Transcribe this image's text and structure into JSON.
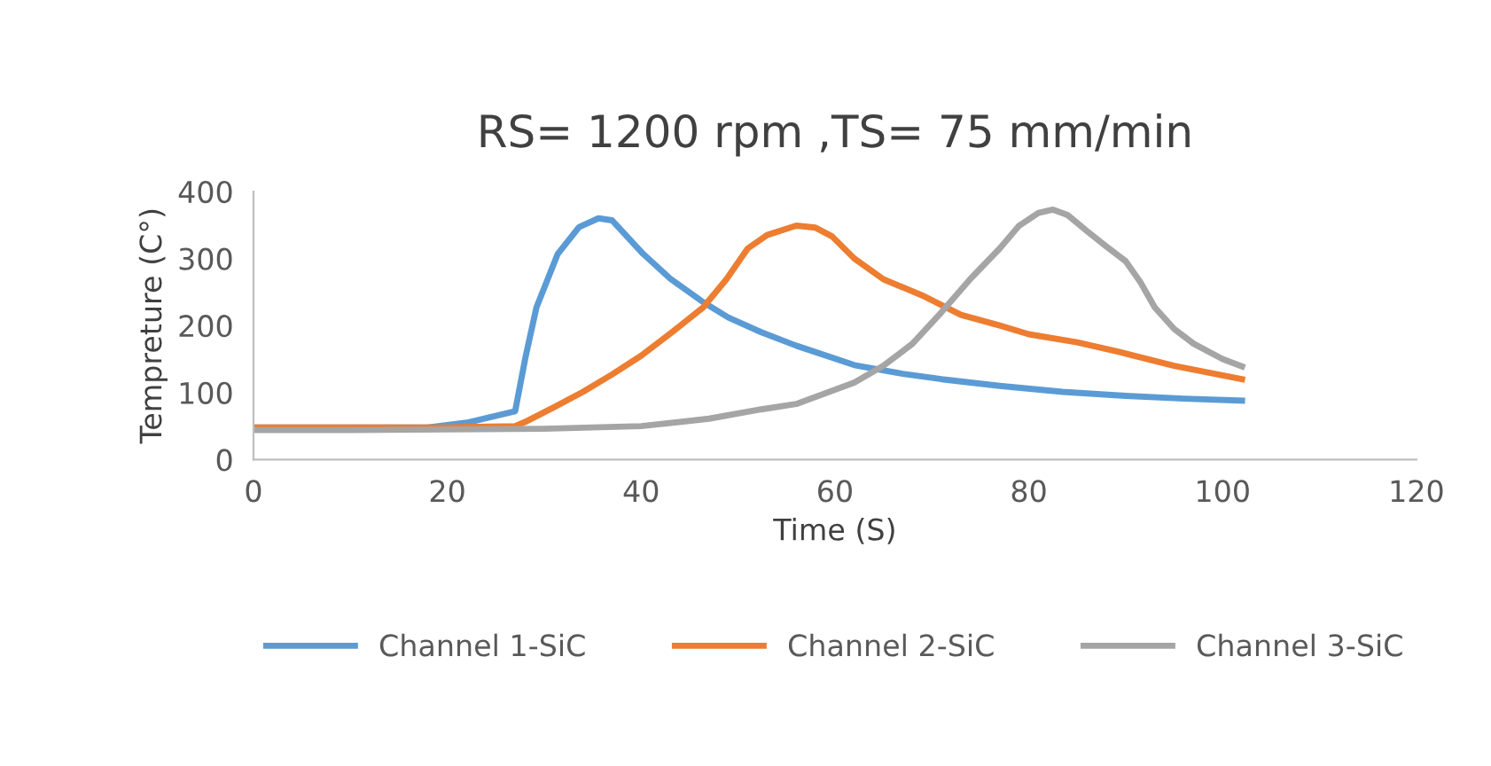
{
  "chart_data": {
    "type": "line",
    "title": "RS= 1200 rpm ,TS= 75 mm/min",
    "xlabel": "Time (S)",
    "ylabel": "Tempreture (C°)",
    "xlim": [
      0,
      120
    ],
    "xticks": [
      0,
      20,
      40,
      60,
      80,
      100,
      120
    ],
    "ylim": [
      0,
      400
    ],
    "yticks": [
      0,
      100,
      200,
      300,
      400
    ],
    "grid": false,
    "legend": "bottom",
    "marker": "none",
    "line_style": "solid",
    "series": [
      {
        "name": "Channel 1-SiC",
        "color": "#5b9bd5",
        "x": [
          0,
          10,
          18,
          22,
          27,
          28.1,
          29.2,
          31.4,
          33.6,
          35.6,
          37,
          40.2,
          43,
          46.4,
          49,
          52.4,
          56,
          62,
          67,
          71,
          77,
          83.5,
          90,
          96,
          102
        ],
        "values": [
          48,
          48,
          48,
          55,
          72,
          155,
          227,
          307,
          347,
          360,
          357,
          307,
          270,
          235,
          212,
          190,
          170,
          141,
          128,
          120,
          110,
          101,
          95,
          91,
          88
        ]
      },
      {
        "name": "Channel 2-SiC",
        "color": "#ed7d31",
        "x": [
          0,
          10,
          20,
          27,
          28,
          31,
          34,
          37,
          40,
          43,
          46.4,
          48.8,
          51,
          53,
          56,
          58,
          59.7,
          62,
          65,
          69,
          73,
          77,
          80,
          85,
          89.5,
          95,
          102
        ],
        "values": [
          48,
          48,
          48,
          50,
          56,
          78,
          101,
          127,
          155,
          188,
          227,
          269,
          315,
          335,
          349,
          346,
          333,
          300,
          269,
          245,
          216,
          200,
          187,
          175,
          160,
          140,
          120
        ]
      },
      {
        "name": "Channel 3-SiC",
        "color": "#a5a5a5",
        "x": [
          0,
          10,
          20,
          30,
          40,
          47,
          52.4,
          56,
          62,
          65,
          68,
          71,
          74,
          77,
          79,
          81,
          82.5,
          84,
          86,
          88,
          90,
          91.5,
          93,
          95,
          97,
          100,
          102
        ],
        "values": [
          44,
          44,
          45,
          46,
          50,
          61,
          75,
          83,
          115,
          140,
          173,
          220,
          270,
          315,
          349,
          368,
          373,
          365,
          341,
          318,
          296,
          265,
          227,
          195,
          173,
          150,
          139
        ]
      }
    ]
  }
}
